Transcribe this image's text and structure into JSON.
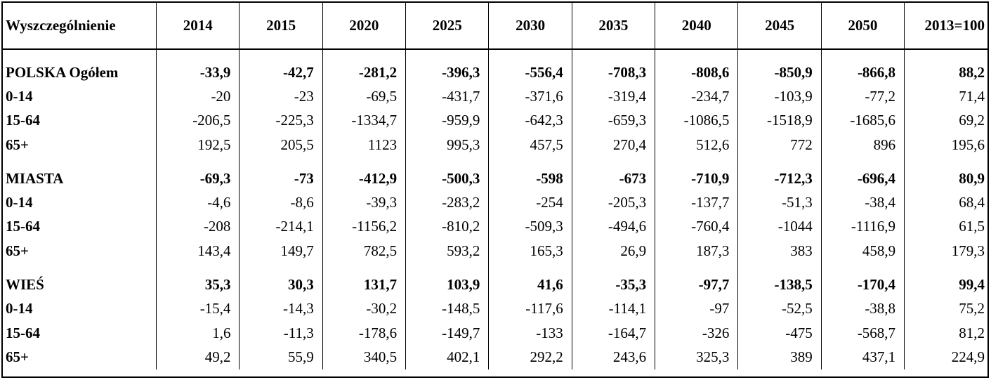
{
  "headers": [
    "Wyszczególnienie",
    "2014",
    "2015",
    "2020",
    "2025",
    "2030",
    "2035",
    "2040",
    "2045",
    "2050",
    "2013=100"
  ],
  "groups": [
    {
      "total": {
        "label": "POLSKA Ogółem",
        "values": [
          "-33,9",
          "-42,7",
          "-281,2",
          "-396,3",
          "-556,4",
          "-708,3",
          "-808,6",
          "-850,9",
          "-866,8",
          "88,2"
        ]
      },
      "rows": [
        {
          "label": "0-14",
          "values": [
            "-20",
            "-23",
            "-69,5",
            "-431,7",
            "-371,6",
            "-319,4",
            "-234,7",
            "-103,9",
            "-77,2",
            "71,4"
          ]
        },
        {
          "label": "15-64",
          "values": [
            "-206,5",
            "-225,3",
            "-1334,7",
            "-959,9",
            "-642,3",
            "-659,3",
            "-1086,5",
            "-1518,9",
            "-1685,6",
            "69,2"
          ]
        },
        {
          "label": "65+",
          "values": [
            "192,5",
            "205,5",
            "1123",
            "995,3",
            "457,5",
            "270,4",
            "512,6",
            "772",
            "896",
            "195,6"
          ]
        }
      ]
    },
    {
      "total": {
        "label": "MIASTA",
        "values": [
          "-69,3",
          "-73",
          "-412,9",
          "-500,3",
          "-598",
          "-673",
          "-710,9",
          "-712,3",
          "-696,4",
          "80,9"
        ]
      },
      "rows": [
        {
          "label": "0-14",
          "values": [
            "-4,6",
            "-8,6",
            "-39,3",
            "-283,2",
            "-254",
            "-205,3",
            "-137,7",
            "-51,3",
            "-38,4",
            "68,4"
          ]
        },
        {
          "label": "15-64",
          "values": [
            "-208",
            "-214,1",
            "-1156,2",
            "-810,2",
            "-509,3",
            "-494,6",
            "-760,4",
            "-1044",
            "-1116,9",
            "61,5"
          ]
        },
        {
          "label": "65+",
          "values": [
            "143,4",
            "149,7",
            "782,5",
            "593,2",
            "165,3",
            "26,9",
            "187,3",
            "383",
            "458,9",
            "179,3"
          ]
        }
      ]
    },
    {
      "total": {
        "label": "WIEŚ",
        "values": [
          "35,3",
          "30,3",
          "131,7",
          "103,9",
          "41,6",
          "-35,3",
          "-97,7",
          "-138,5",
          "-170,4",
          "99,4"
        ]
      },
      "rows": [
        {
          "label": "0-14",
          "values": [
            "-15,4",
            "-14,3",
            "-30,2",
            "-148,5",
            "-117,6",
            "-114,1",
            "-97",
            "-52,5",
            "-38,8",
            "75,2"
          ]
        },
        {
          "label": "15-64",
          "values": [
            "1,6",
            "-11,3",
            "-178,6",
            "-149,7",
            "-133",
            "-164,7",
            "-326",
            "-475",
            "-568,7",
            "81,2"
          ]
        },
        {
          "label": "65+",
          "values": [
            "49,2",
            "55,9",
            "340,5",
            "402,1",
            "292,2",
            "243,6",
            "325,3",
            "389",
            "437,1",
            "224,9"
          ]
        }
      ]
    }
  ]
}
